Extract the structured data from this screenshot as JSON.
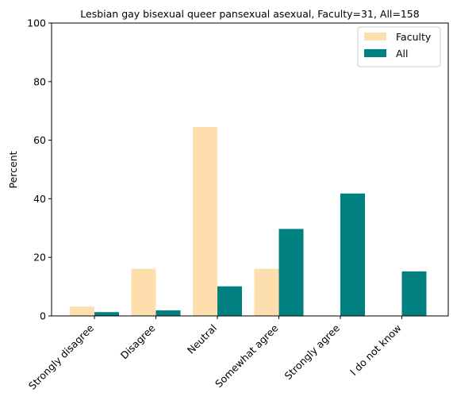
{
  "chart_data": {
    "type": "bar",
    "title": "Lesbian gay bisexual queer pansexual asexual, Faculty=31, All=158",
    "xlabel": "",
    "ylabel": "Percent",
    "ylim": [
      0,
      100
    ],
    "yticks": [
      0,
      20,
      40,
      60,
      80,
      100
    ],
    "categories": [
      "Strongly disagree",
      "Disagree",
      "Neutral",
      "Somewhat agree",
      "Strongly agree",
      "I do not know"
    ],
    "series": [
      {
        "name": "Faculty",
        "color": "#ffdead",
        "values": [
          3.2,
          16.1,
          64.5,
          16.1,
          0,
          0
        ]
      },
      {
        "name": "All",
        "color": "#008080",
        "values": [
          1.3,
          1.9,
          10.1,
          29.7,
          41.8,
          15.2
        ]
      }
    ],
    "legend_position": "top-right",
    "grid": false
  }
}
